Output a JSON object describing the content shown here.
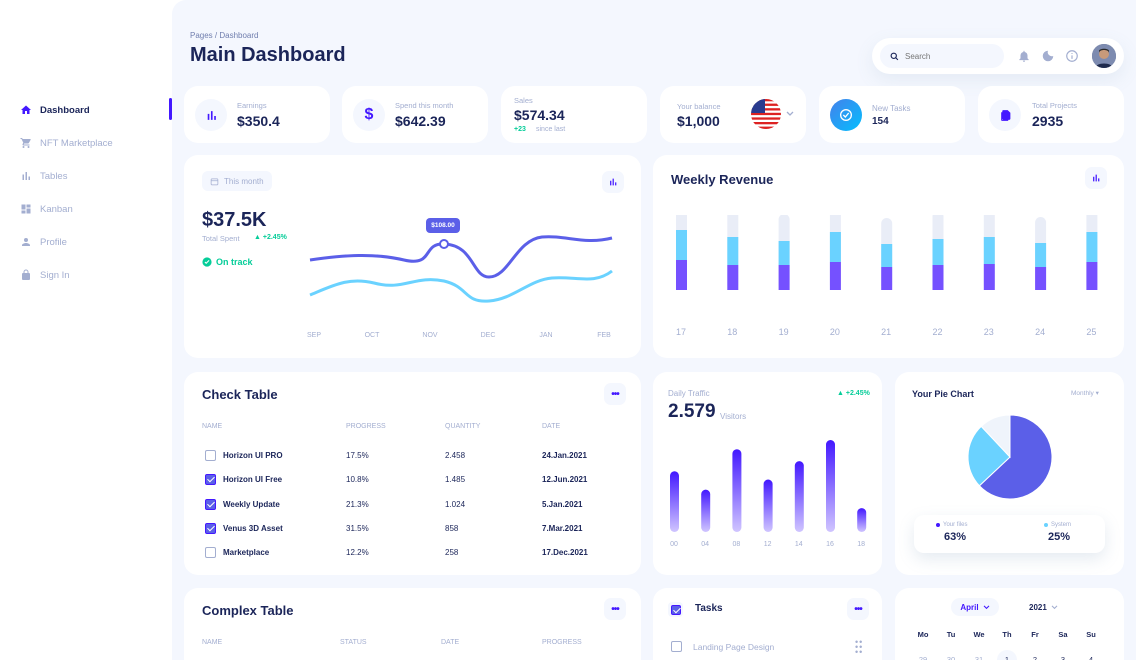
{
  "sidebar": {
    "items": [
      {
        "label": "Dashboard",
        "icon": "home-icon"
      },
      {
        "label": "NFT Marketplace",
        "icon": "cart-icon"
      },
      {
        "label": "Tables",
        "icon": "bar-chart-icon"
      },
      {
        "label": "Kanban",
        "icon": "grid-icon"
      },
      {
        "label": "Profile",
        "icon": "person-icon"
      },
      {
        "label": "Sign In",
        "icon": "lock-icon"
      }
    ]
  },
  "header": {
    "breadcrumb": "Pages / Dashboard",
    "title": "Main Dashboard",
    "search_placeholder": "Search"
  },
  "stats": {
    "earnings": {
      "label": "Earnings",
      "value": "$350.4"
    },
    "spend": {
      "label": "Spend this month",
      "value": "$642.39"
    },
    "sales": {
      "label": "Sales",
      "value": "$574.34",
      "delta": "+23",
      "delta_text": "since last"
    },
    "balance": {
      "label": "Your balance",
      "value": "$1,000"
    },
    "tasks": {
      "label": "New Tasks",
      "value": "154"
    },
    "projects": {
      "label": "Total Projects",
      "value": "2935"
    }
  },
  "total_spent": {
    "period": "This month",
    "value": "$37.5K",
    "label": "Total Spent",
    "delta": "+2.45%",
    "status": "On track",
    "tooltip": "$108.00",
    "months": [
      "SEP",
      "OCT",
      "NOV",
      "DEC",
      "JAN",
      "FEB"
    ]
  },
  "weekly": {
    "title": "Weekly Revenue",
    "days": [
      "17",
      "18",
      "19",
      "20",
      "21",
      "22",
      "23",
      "24",
      "25"
    ]
  },
  "check_table": {
    "title": "Check Table",
    "headers": [
      "NAME",
      "PROGRESS",
      "QUANTITY",
      "DATE"
    ],
    "rows": [
      {
        "name": "Horizon UI PRO",
        "progress": "17.5%",
        "quantity": "2.458",
        "date": "24.Jan.2021",
        "checked": false
      },
      {
        "name": "Horizon UI Free",
        "progress": "10.8%",
        "quantity": "1.485",
        "date": "12.Jun.2021",
        "checked": true
      },
      {
        "name": "Weekly Update",
        "progress": "21.3%",
        "quantity": "1.024",
        "date": "5.Jan.2021",
        "checked": true
      },
      {
        "name": "Venus 3D Asset",
        "progress": "31.5%",
        "quantity": "858",
        "date": "7.Mar.2021",
        "checked": true
      },
      {
        "name": "Marketplace",
        "progress": "12.2%",
        "quantity": "258",
        "date": "17.Dec.2021",
        "checked": false
      }
    ]
  },
  "traffic": {
    "label": "Daily Traffic",
    "value": "2.579",
    "unit": "Visitors",
    "delta": "+2.45%",
    "hours": [
      "00",
      "04",
      "08",
      "12",
      "14",
      "16",
      "18"
    ],
    "values": [
      0.66,
      0.46,
      0.9,
      0.57,
      0.77,
      1.0,
      0.26
    ]
  },
  "pie": {
    "title": "Your Pie Chart",
    "period": "Monthly",
    "files_label": "Your files",
    "files_value": "63%",
    "system_label": "System",
    "system_value": "25%",
    "segments": [
      63,
      25,
      12
    ]
  },
  "complex_table": {
    "title": "Complex Table",
    "headers": [
      "NAME",
      "STATUS",
      "DATE",
      "PROGRESS"
    ]
  },
  "tasks_card": {
    "title": "Tasks",
    "first": "Landing Page Design"
  },
  "calendar": {
    "month": "April",
    "year": "2021",
    "days": [
      "Mo",
      "Tu",
      "We",
      "Th",
      "Fr",
      "Sa",
      "Su"
    ],
    "dates": [
      "29",
      "30",
      "31",
      "1",
      "2",
      "3",
      "4"
    ]
  },
  "chart_data": [
    {
      "type": "line",
      "title": "",
      "x": [
        "SEP",
        "OCT",
        "NOV",
        "DEC",
        "JAN",
        "FEB"
      ],
      "series": [
        {
          "name": "",
          "values": [
            50,
            45,
            60,
            35,
            72,
            65
          ]
        },
        {
          "name": "",
          "values": [
            20,
            35,
            30,
            15,
            35,
            48
          ]
        }
      ]
    },
    {
      "type": "bar",
      "title": "Weekly Revenue",
      "categories": [
        "17",
        "18",
        "19",
        "20",
        "21",
        "22",
        "23",
        "24",
        "25"
      ],
      "series": [
        {
          "name": "",
          "values": [
            32,
            30,
            27,
            32,
            26,
            28,
            28,
            26,
            31
          ]
        },
        {
          "name": "",
          "values": [
            30,
            28,
            24,
            30,
            23,
            26,
            27,
            24,
            30
          ]
        },
        {
          "name": "",
          "values": [
            30,
            25,
            25,
            28,
            23,
            25,
            26,
            23,
            28
          ]
        }
      ]
    },
    {
      "type": "bar",
      "title": "Daily Traffic",
      "categories": [
        "00",
        "04",
        "08",
        "12",
        "14",
        "16",
        "18"
      ],
      "values": [
        0.66,
        0.46,
        0.9,
        0.57,
        0.77,
        1.0,
        0.26
      ]
    },
    {
      "type": "pie",
      "title": "Your Pie Chart",
      "labels": [
        "Your files",
        "System",
        ""
      ],
      "values": [
        63,
        25,
        12
      ]
    }
  ]
}
